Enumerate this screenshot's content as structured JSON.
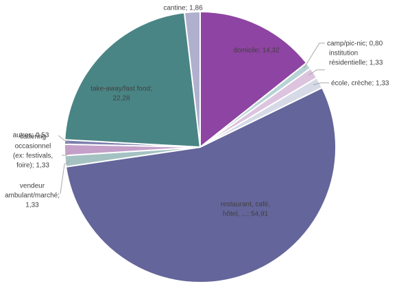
{
  "chart_data": {
    "type": "pie",
    "title": "",
    "start_angle_deg": 0,
    "slices": [
      {
        "label": [
          "domicile; 14,32"
        ],
        "value": 14.32,
        "color": "#8E44A2"
      },
      {
        "label": [
          "camp/pic-nic; 0,80"
        ],
        "value": 0.8,
        "color": "#B8D3D5"
      },
      {
        "label": [
          "institution",
          "résidentielle; 1,33"
        ],
        "value": 1.33,
        "color": "#DCC4DF"
      },
      {
        "label": [
          "école, crèche; 1,33"
        ],
        "value": 1.33,
        "color": "#D6D9E6"
      },
      {
        "label": [
          "restaurant, café,",
          "hôtel, ...; 54,91"
        ],
        "value": 54.91,
        "color": "#64659A"
      },
      {
        "label": [
          "vendeur",
          "ambulant/marché;",
          "1,33"
        ],
        "value": 1.33,
        "color": "#A5C2C3"
      },
      {
        "label": [
          "cattering",
          "occasionnel",
          "(ex: festivals,",
          "foire); 1,33"
        ],
        "value": 1.33,
        "color": "#C4A0C9"
      },
      {
        "label": [
          "autres; 0,53"
        ],
        "value": 0.53,
        "color": "#7B7DAE"
      },
      {
        "label": [
          "take-away/fast food;",
          "22,28"
        ],
        "value": 22.28,
        "color": "#4A8585"
      },
      {
        "label": [
          "cantine; 1,86"
        ],
        "value": 1.86,
        "color": "#B0B0CE"
      }
    ]
  }
}
